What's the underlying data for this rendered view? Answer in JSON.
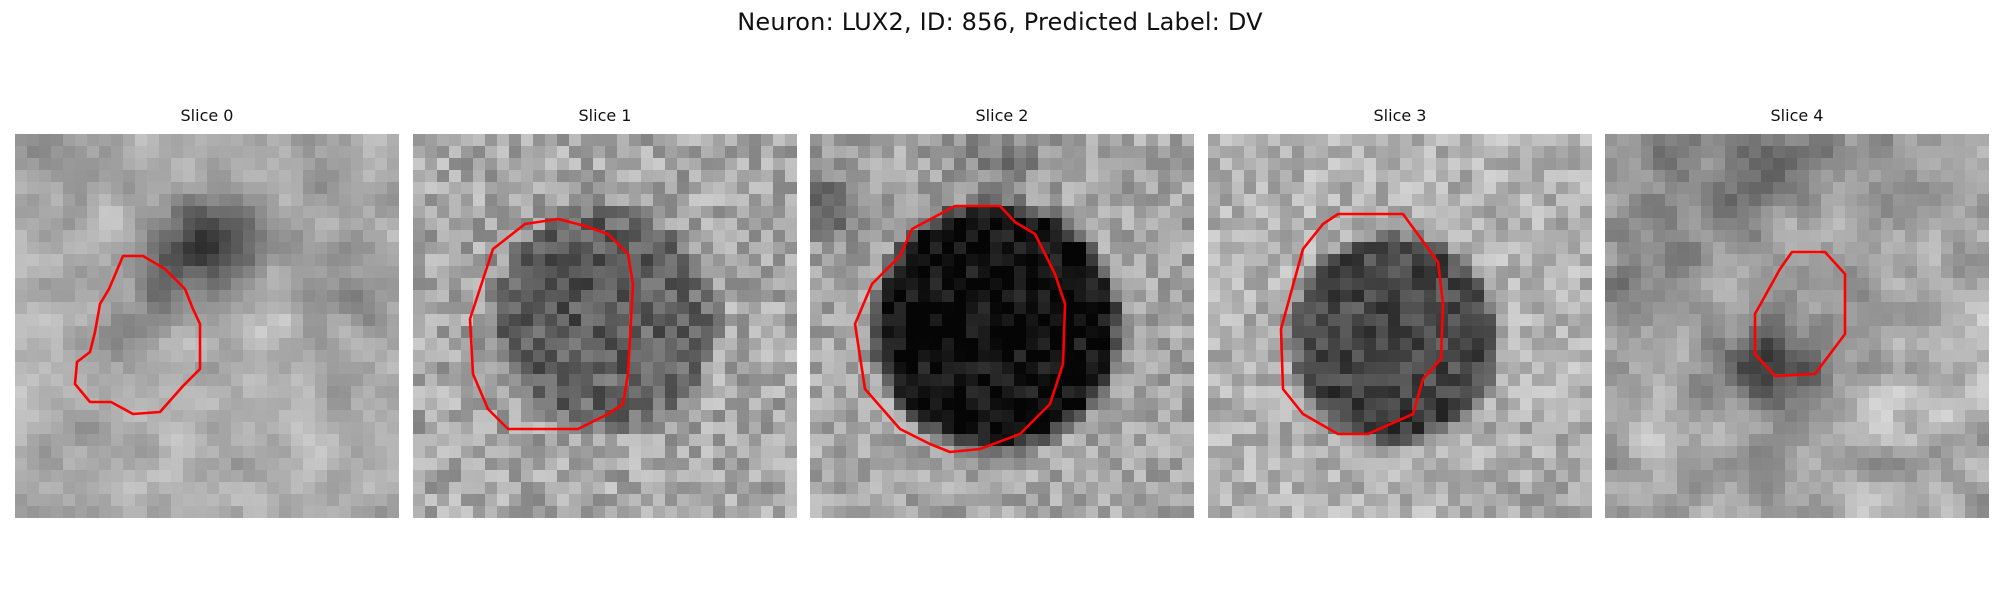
{
  "figure": {
    "title": "Neuron: LUX2, ID: 856, Predicted Label: DV"
  },
  "colors": {
    "contour": "#ff0000",
    "background": "#ffffff"
  },
  "panels": [
    {
      "title": "Slice 0"
    },
    {
      "title": "Slice 1"
    },
    {
      "title": "Slice 2"
    },
    {
      "title": "Slice 3"
    },
    {
      "title": "Slice 4"
    }
  ]
}
